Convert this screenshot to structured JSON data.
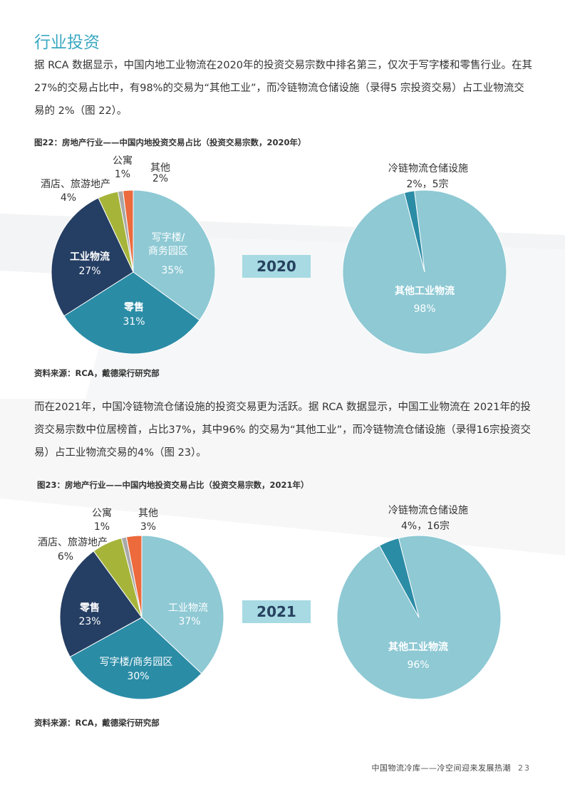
{
  "section": {
    "title": "行业投资"
  },
  "paragraph1": "据 RCA 数据显示，中国内地工业物流在2020年的投资交易宗数中排名第三，仅次于写字楼和零售行业。在其27%的交易占比中，有98%的交易为“其他工业”，而冷链物流仓储设施（录得5 宗投资交易）占工业物流交易的 2%（图 22）。",
  "paragraph2": "而在2021年，中国冷链物流仓储设施的投资交易更为活跃。据 RCA 数据显示，中国工业物流在 2021年的投资交易宗数中位居榜首，占比37%，其中96% 的交易为“其他工业”，而冷链物流仓储设施（录得16宗投资交易）占工业物流交易的4%（图 23）。",
  "footer": {
    "text": "中国物流冷库——冷空间迎来发展热潮",
    "page": "23"
  },
  "chart_data": [
    {
      "type": "pie",
      "title": "图22：房地产行业——中国内地投资交易占比（投资交易宗数，2020年）",
      "source": "资料来源：RCA，戴德梁行研究部",
      "year_label": "2020",
      "slices": [
        {
          "name": "写字楼/商务园区",
          "value": 35,
          "label": "35%",
          "color": "#8ec9d4"
        },
        {
          "name": "零售",
          "value": 31,
          "label": "31%",
          "color": "#2b8ca6"
        },
        {
          "name": "工业物流",
          "value": 27,
          "label": "27%",
          "color": "#253e63"
        },
        {
          "name": "酒店、旅游地产",
          "value": 4,
          "label": "4%",
          "color": "#a6b53a"
        },
        {
          "name": "公寓",
          "value": 1,
          "label": "1%",
          "color": "#a9a9a9"
        },
        {
          "name": "其他",
          "value": 2,
          "label": "2%",
          "color": "#ec6a3c"
        }
      ],
      "breakdown": {
        "slices": [
          {
            "name": "其他工业物流",
            "value": 98,
            "label": "98%",
            "color": "#8ec9d4"
          },
          {
            "name": "冷链物流仓储设施",
            "value": 2,
            "label": "2%，5宗",
            "color": "#2b8ca6"
          }
        ]
      }
    },
    {
      "type": "pie",
      "title": "图23：房地产行业——中国内地投资交易占比（投资交易宗数，2021年）",
      "source": "资料来源：RCA，戴德梁行研究部",
      "year_label": "2021",
      "slices": [
        {
          "name": "工业物流",
          "value": 37,
          "label": "37%",
          "color": "#8ec9d4"
        },
        {
          "name": "写字楼/商务园区",
          "value": 30,
          "label": "30%",
          "color": "#2b8ca6"
        },
        {
          "name": "零售",
          "value": 23,
          "label": "23%",
          "color": "#253e63"
        },
        {
          "name": "酒店、旅游地产",
          "value": 6,
          "label": "6%",
          "color": "#a6b53a"
        },
        {
          "name": "公寓",
          "value": 1,
          "label": "1%",
          "color": "#a9a9a9"
        },
        {
          "name": "其他",
          "value": 3,
          "label": "3%",
          "color": "#ec6a3c"
        }
      ],
      "breakdown": {
        "slices": [
          {
            "name": "其他工业物流",
            "value": 96,
            "label": "96%",
            "color": "#8ec9d4"
          },
          {
            "name": "冷链物流仓储设施",
            "value": 4,
            "label": "4%，16宗",
            "color": "#2b8ca6"
          }
        ]
      }
    }
  ]
}
